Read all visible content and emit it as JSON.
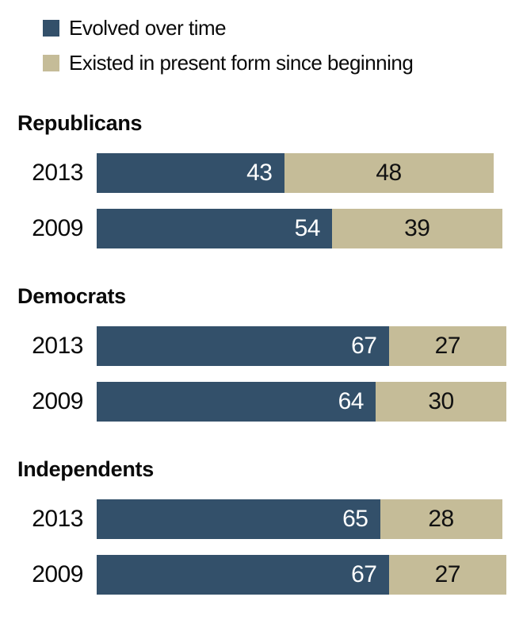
{
  "chart_data": {
    "type": "bar",
    "orientation": "horizontal",
    "stacked": true,
    "grid": false,
    "axes_shown": false,
    "legend_position": "top-left",
    "xlim": [
      0,
      100
    ],
    "series": [
      {
        "key": "evolved",
        "label": "Evolved over time",
        "color": "#33506A",
        "value_color": "#ffffff"
      },
      {
        "key": "existed",
        "label": "Existed in present form since beginning",
        "color": "#C5BC98",
        "value_color": "#111111"
      }
    ],
    "groups": [
      {
        "label": "Republicans",
        "rows": [
          {
            "year": "2013",
            "values": [
              43,
              48
            ]
          },
          {
            "year": "2009",
            "values": [
              54,
              39
            ]
          }
        ]
      },
      {
        "label": "Democrats",
        "rows": [
          {
            "year": "2013",
            "values": [
              67,
              27
            ]
          },
          {
            "year": "2009",
            "values": [
              64,
              30
            ]
          }
        ]
      },
      {
        "label": "Independents",
        "rows": [
          {
            "year": "2013",
            "values": [
              65,
              28
            ]
          },
          {
            "year": "2009",
            "values": [
              67,
              27
            ]
          }
        ]
      }
    ]
  }
}
